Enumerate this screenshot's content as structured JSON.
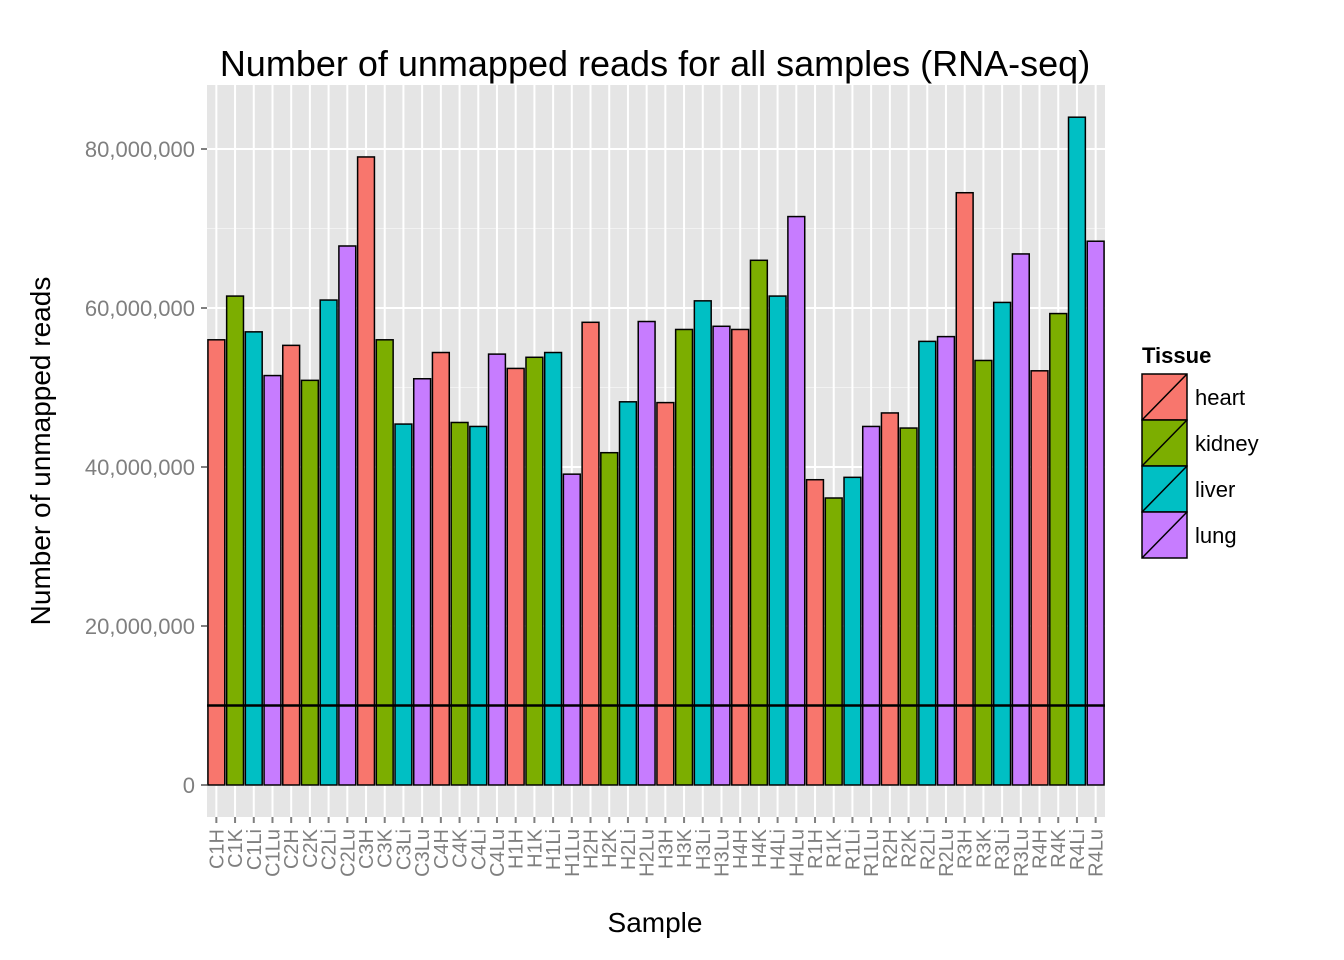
{
  "chart_data": {
    "type": "bar",
    "title": "Number of unmapped reads for all samples (RNA-seq)",
    "xlabel": "Sample",
    "ylabel": "Number of unmapped reads",
    "ylim": [
      0,
      88000000
    ],
    "yticks": [
      0,
      20000000,
      40000000,
      60000000,
      80000000
    ],
    "ytick_labels": [
      "0",
      "20,000,000",
      "40,000,000",
      "60,000,000",
      "80,000,000"
    ],
    "reference_line": 10000000,
    "grid": true,
    "legend": {
      "title": "Tissue",
      "placement": "right",
      "items": [
        {
          "label": "heart",
          "color": "#F8766D"
        },
        {
          "label": "kidney",
          "color": "#7CAE00"
        },
        {
          "label": "liver",
          "color": "#00BFC4"
        },
        {
          "label": "lung",
          "color": "#C77CFF"
        }
      ]
    },
    "categories": [
      "C1H",
      "C1K",
      "C1Li",
      "C1Lu",
      "C2H",
      "C2K",
      "C2Li",
      "C2Lu",
      "C3H",
      "C3K",
      "C3Li",
      "C3Lu",
      "C4H",
      "C4K",
      "C4Li",
      "C4Lu",
      "H1H",
      "H1K",
      "H1Li",
      "H1Lu",
      "H2H",
      "H2K",
      "H2Li",
      "H2Lu",
      "H3H",
      "H3K",
      "H3Li",
      "H3Lu",
      "H4H",
      "H4K",
      "H4Li",
      "H4Lu",
      "R1H",
      "R1K",
      "R1Li",
      "R1Lu",
      "R2H",
      "R2K",
      "R2Li",
      "R2Lu",
      "R3H",
      "R3K",
      "R3Li",
      "R3Lu",
      "R4H",
      "R4K",
      "R4Li",
      "R4Lu"
    ],
    "tissue": [
      "heart",
      "kidney",
      "liver",
      "lung",
      "heart",
      "kidney",
      "liver",
      "lung",
      "heart",
      "kidney",
      "liver",
      "lung",
      "heart",
      "kidney",
      "liver",
      "lung",
      "heart",
      "kidney",
      "liver",
      "lung",
      "heart",
      "kidney",
      "liver",
      "lung",
      "heart",
      "kidney",
      "liver",
      "lung",
      "heart",
      "kidney",
      "liver",
      "lung",
      "heart",
      "kidney",
      "liver",
      "lung",
      "heart",
      "kidney",
      "liver",
      "lung",
      "heart",
      "kidney",
      "liver",
      "lung",
      "heart",
      "kidney",
      "liver",
      "lung"
    ],
    "values": [
      56000000,
      61500000,
      57000000,
      51500000,
      55300000,
      50900000,
      61000000,
      67800000,
      79000000,
      56000000,
      45400000,
      51100000,
      54400000,
      45600000,
      45100000,
      54200000,
      52400000,
      53800000,
      54400000,
      39100000,
      58200000,
      41800000,
      48200000,
      58300000,
      48100000,
      57300000,
      60900000,
      57700000,
      57300000,
      66000000,
      61500000,
      71500000,
      38400000,
      36100000,
      38700000,
      45100000,
      46800000,
      44900000,
      55800000,
      56400000,
      74500000,
      53400000,
      60700000,
      66800000,
      52100000,
      59300000,
      84000000,
      68400000
    ]
  }
}
